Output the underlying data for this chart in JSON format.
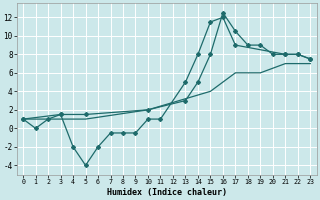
{
  "xlabel": "Humidex (Indice chaleur)",
  "bg_color": "#cce8ea",
  "grid_color": "#ffffff",
  "line_color": "#1e6b6b",
  "xlim": [
    -0.5,
    23.5
  ],
  "ylim": [
    -5.0,
    13.5
  ],
  "xticks": [
    0,
    1,
    2,
    3,
    4,
    5,
    6,
    7,
    8,
    9,
    10,
    11,
    12,
    13,
    14,
    15,
    16,
    17,
    18,
    19,
    20,
    21,
    22,
    23
  ],
  "yticks": [
    -4,
    -2,
    0,
    2,
    4,
    6,
    8,
    10,
    12
  ],
  "line_zigzag_x": [
    0,
    1,
    2,
    3,
    4,
    5,
    6,
    7,
    8,
    9,
    10,
    11,
    13,
    14,
    15,
    16,
    17,
    21,
    22,
    23
  ],
  "line_zigzag_y": [
    1,
    0,
    1,
    1.5,
    -2,
    -4,
    -2,
    -0.5,
    -0.5,
    -0.5,
    1,
    1,
    5,
    8,
    11.5,
    12,
    9,
    8,
    8,
    7.5
  ],
  "line_upper_x": [
    0,
    3,
    5,
    10,
    13,
    14,
    15,
    16,
    17,
    18,
    19,
    20,
    21,
    22,
    23
  ],
  "line_upper_y": [
    1,
    1.5,
    1.5,
    2,
    3,
    5,
    8,
    12.5,
    10.5,
    9,
    9,
    8,
    8,
    8,
    7.5
  ],
  "line_lower_x": [
    0,
    5,
    10,
    15,
    17,
    19,
    21,
    23
  ],
  "line_lower_y": [
    1,
    1,
    2,
    4,
    6,
    6,
    7,
    7
  ]
}
